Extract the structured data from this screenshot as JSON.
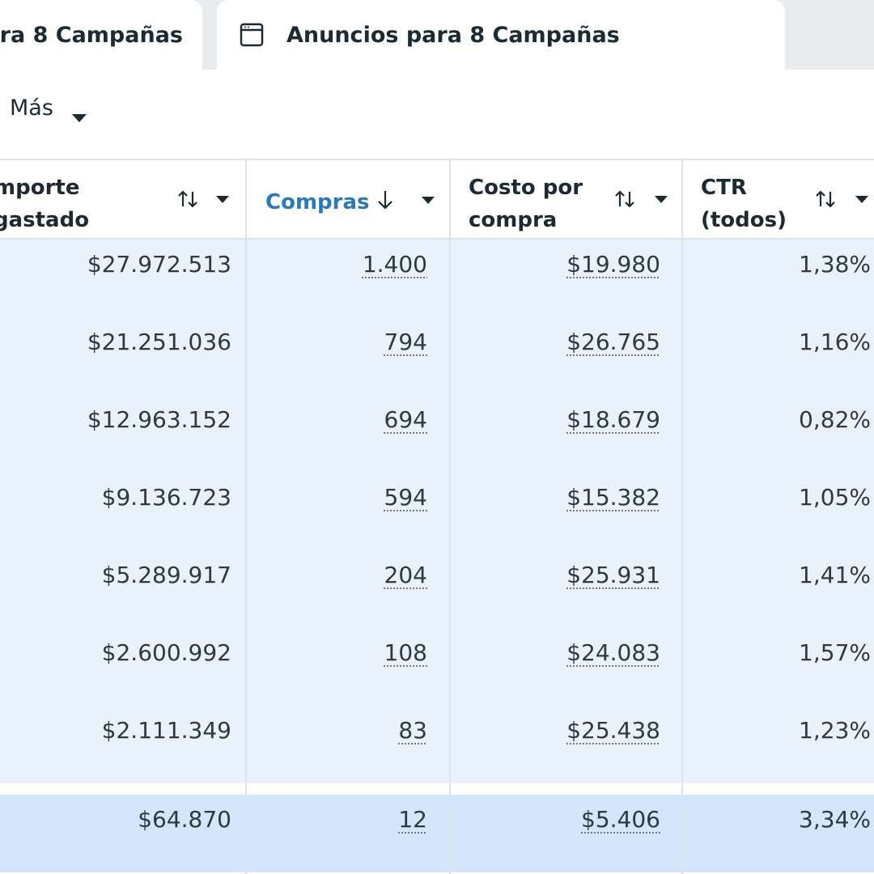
{
  "tabs": [
    {
      "label": "ra 8 Campañas"
    },
    {
      "label": "Anuncios para 8 Campañas"
    }
  ],
  "toolbar": {
    "more_label": "Más"
  },
  "columns": {
    "importe": {
      "line1": "mporte",
      "line2": "gastado"
    },
    "compras": {
      "label": "Compras"
    },
    "costo": {
      "line1": "Costo por",
      "line2": "compra"
    },
    "ctr": {
      "line1": "CTR",
      "line2": "(todos)"
    }
  },
  "rows": [
    {
      "importe": "$27.972.513",
      "compras": "1.400",
      "costo": "$19.980",
      "ctr": "1,38%"
    },
    {
      "importe": "$21.251.036",
      "compras": "794",
      "costo": "$26.765",
      "ctr": "1,16%"
    },
    {
      "importe": "$12.963.152",
      "compras": "694",
      "costo": "$18.679",
      "ctr": "0,82%"
    },
    {
      "importe": "$9.136.723",
      "compras": "594",
      "costo": "$15.382",
      "ctr": "1,05%"
    },
    {
      "importe": "$5.289.917",
      "compras": "204",
      "costo": "$25.931",
      "ctr": "1,41%"
    },
    {
      "importe": "$2.600.992",
      "compras": "108",
      "costo": "$24.083",
      "ctr": "1,57%"
    },
    {
      "importe": "$2.111.349",
      "compras": "83",
      "costo": "$25.438",
      "ctr": "1,23%"
    }
  ],
  "total": {
    "importe": "$64.870",
    "compras": "12",
    "costo": "$5.406",
    "ctr": "3,34%"
  },
  "colors": {
    "accent": "#2a7ab8",
    "row_bg": "#e8f1fc",
    "total_bg": "#d3e6fb"
  }
}
